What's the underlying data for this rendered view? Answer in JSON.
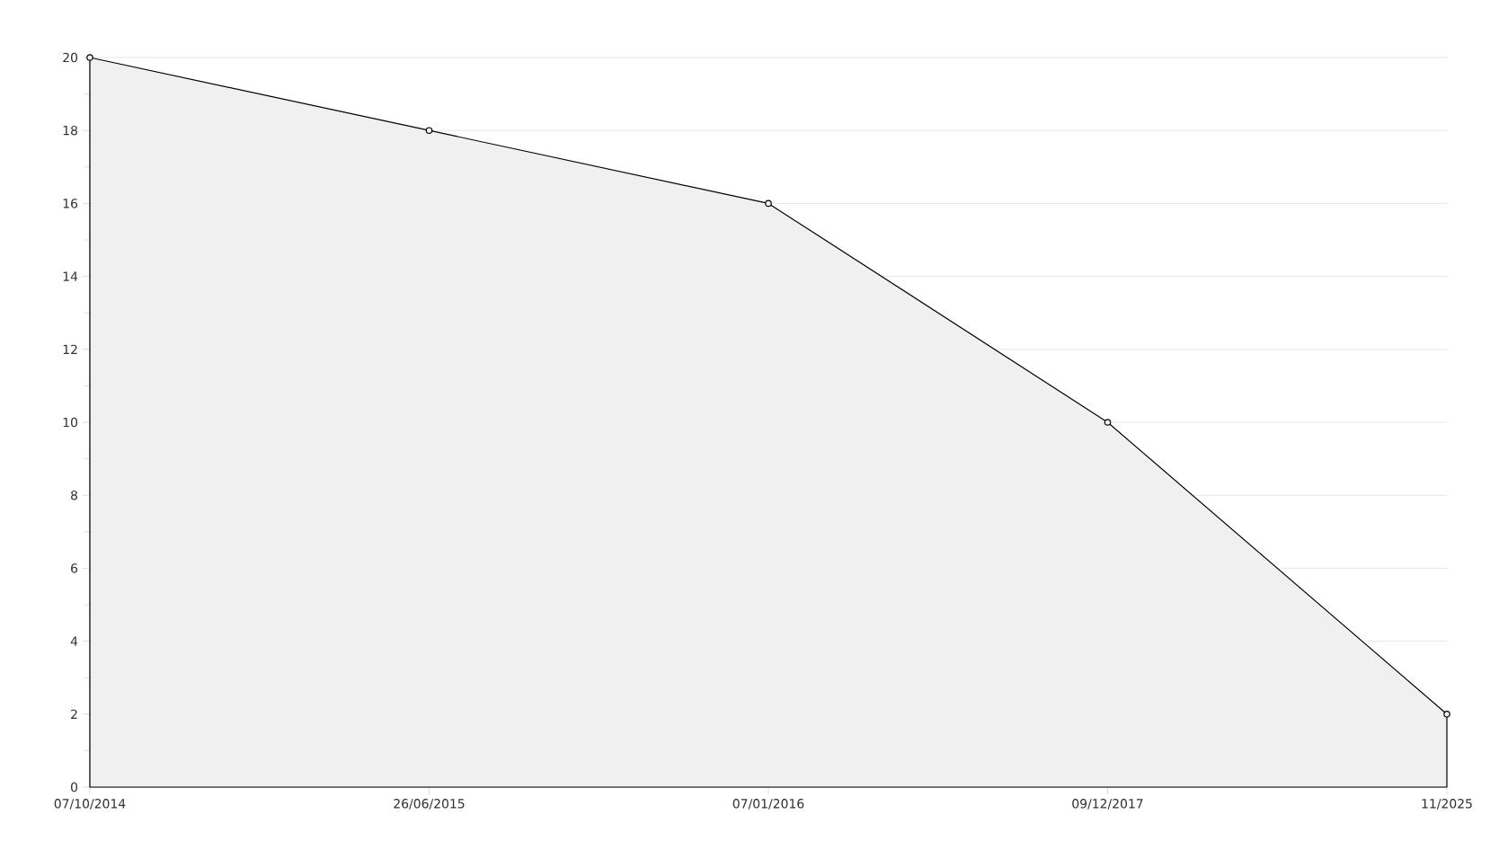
{
  "chart_data": {
    "type": "area",
    "categories": [
      "07/10/2014",
      "26/06/2015",
      "07/01/2016",
      "09/12/2017",
      "11/2025"
    ],
    "values": [
      20,
      18,
      16,
      10,
      2
    ],
    "color": "#000000",
    "ylim": [
      0,
      20
    ],
    "yticks": [
      0,
      2,
      4,
      6,
      8,
      10,
      12,
      14,
      16,
      18,
      20
    ],
    "grid": "y",
    "marker": "circle"
  }
}
